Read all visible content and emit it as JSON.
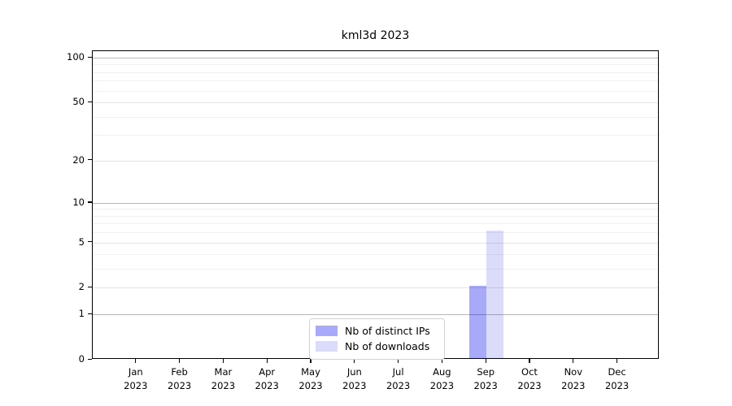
{
  "chart_data": {
    "type": "bar",
    "title": "kml3d 2023",
    "x_categories": [
      {
        "month": "Jan",
        "year": "2023"
      },
      {
        "month": "Feb",
        "year": "2023"
      },
      {
        "month": "Mar",
        "year": "2023"
      },
      {
        "month": "Apr",
        "year": "2023"
      },
      {
        "month": "May",
        "year": "2023"
      },
      {
        "month": "Jun",
        "year": "2023"
      },
      {
        "month": "Jul",
        "year": "2023"
      },
      {
        "month": "Aug",
        "year": "2023"
      },
      {
        "month": "Sep",
        "year": "2023"
      },
      {
        "month": "Oct",
        "year": "2023"
      },
      {
        "month": "Nov",
        "year": "2023"
      },
      {
        "month": "Dec",
        "year": "2023"
      }
    ],
    "series": [
      {
        "name": "Nb of distinct IPs",
        "color": "#a9a9fa",
        "values": [
          0,
          0,
          0,
          0,
          0,
          0,
          0,
          0,
          2,
          0,
          0,
          0
        ]
      },
      {
        "name": "Nb of downloads",
        "color": "#dbdbfa",
        "values": [
          0,
          0,
          0,
          0,
          0,
          0,
          0,
          0,
          6,
          0,
          0,
          0
        ]
      }
    ],
    "y_scale": "log1p",
    "y_ticks": [
      0,
      1,
      2,
      5,
      10,
      20,
      50,
      100
    ],
    "y_major_gridlines": [
      1,
      10,
      100
    ],
    "y_mid_gridlines": [
      2,
      5,
      20,
      50
    ],
    "y_minor_gridlines": [
      3,
      4,
      6,
      7,
      8,
      9,
      30,
      40,
      60,
      70,
      80,
      90
    ],
    "ylim": [
      0,
      110
    ],
    "xlabel": "",
    "ylabel": "",
    "grid": "horizontal",
    "legend_position": "bottom-center"
  }
}
